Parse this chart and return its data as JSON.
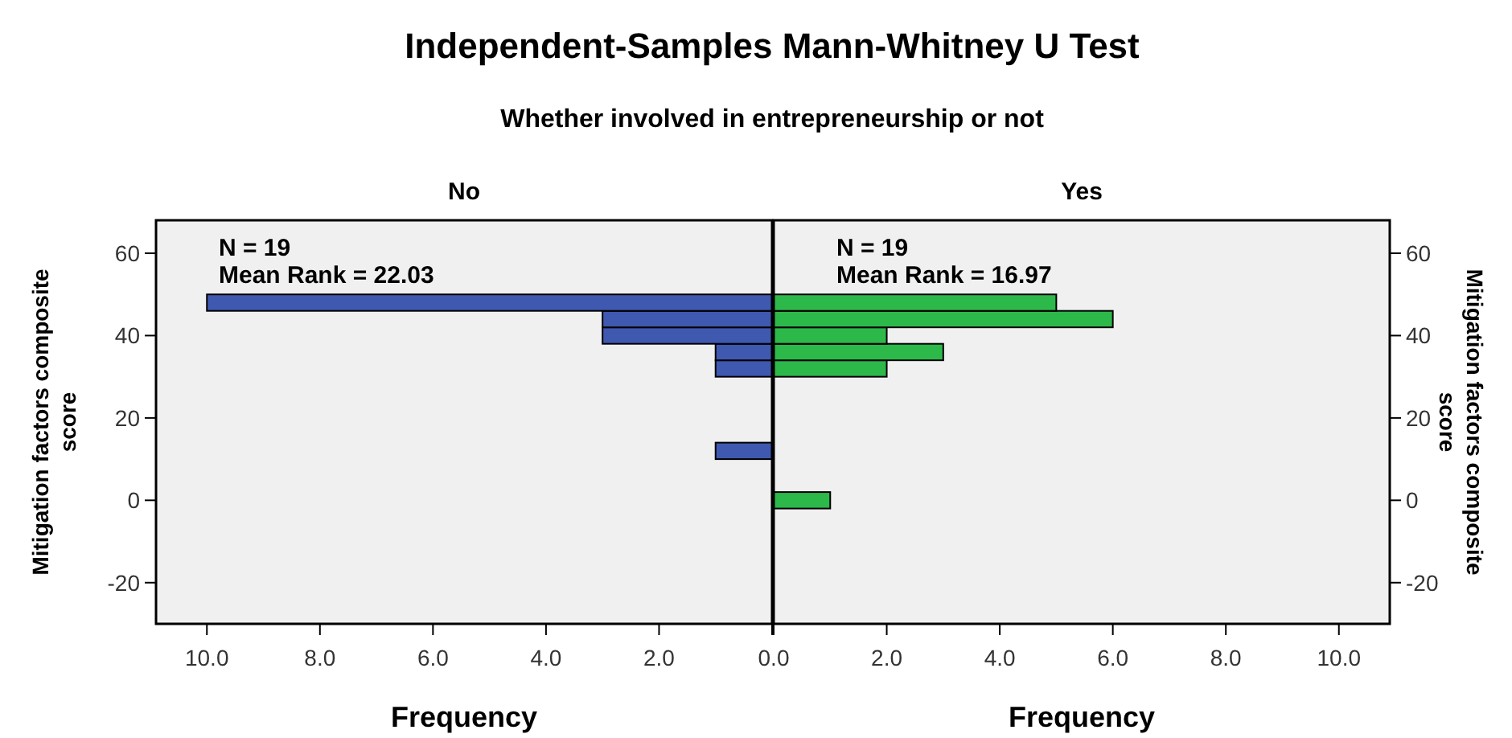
{
  "chart_data": [
    {
      "type": "other",
      "title": "Independent-Samples Mann-Whitney U Test",
      "subtitle": "Whether involved in entrepreneurship or not"
    },
    {
      "type": "histogram",
      "orientation": "horizontal",
      "title": "No",
      "xlabel": "Frequency",
      "ylabel": "Mitigation factors composite score",
      "annotations": [
        "N = 19",
        "Mean Rank = 22.03"
      ],
      "bins": [
        -2,
        2,
        6,
        10,
        14,
        18,
        22,
        26,
        30,
        34,
        38,
        42,
        46,
        50
      ],
      "values": [
        0,
        0,
        0,
        1,
        0,
        0,
        0,
        0,
        1,
        1,
        3,
        3,
        10
      ],
      "color": "#3f58b0",
      "xlim": [
        10.9,
        0
      ],
      "xticks": [
        {
          "value": 10,
          "label": "10.0"
        },
        {
          "value": 8,
          "label": "8.0"
        },
        {
          "value": 6,
          "label": "6.0"
        },
        {
          "value": 4,
          "label": "4.0"
        },
        {
          "value": 2,
          "label": "2.0"
        },
        {
          "value": 0,
          "label": null
        }
      ],
      "ylim": [
        -30,
        68
      ],
      "yticks": [
        -20,
        0,
        20,
        40,
        60
      ]
    },
    {
      "type": "histogram",
      "orientation": "horizontal",
      "title": "Yes",
      "xlabel": "Frequency",
      "ylabel": "Mitigation factors composite score",
      "annotations": [
        "N = 19",
        "Mean Rank = 16.97"
      ],
      "bins": [
        -2,
        2,
        6,
        10,
        14,
        18,
        22,
        26,
        30,
        34,
        38,
        42,
        46,
        50
      ],
      "values": [
        1,
        0,
        0,
        0,
        0,
        0,
        0,
        0,
        2,
        3,
        2,
        6,
        5
      ],
      "color": "#2db84a",
      "xlim": [
        0,
        10.9
      ],
      "xticks": [
        {
          "value": 0,
          "label": "0.0"
        },
        {
          "value": 2,
          "label": "2.0"
        },
        {
          "value": 4,
          "label": "4.0"
        },
        {
          "value": 6,
          "label": "6.0"
        },
        {
          "value": 8,
          "label": "8.0"
        },
        {
          "value": 10,
          "label": "10.0"
        }
      ],
      "ylim": [
        -30,
        68
      ],
      "yticks": [
        -20,
        0,
        20,
        40,
        60
      ]
    }
  ]
}
